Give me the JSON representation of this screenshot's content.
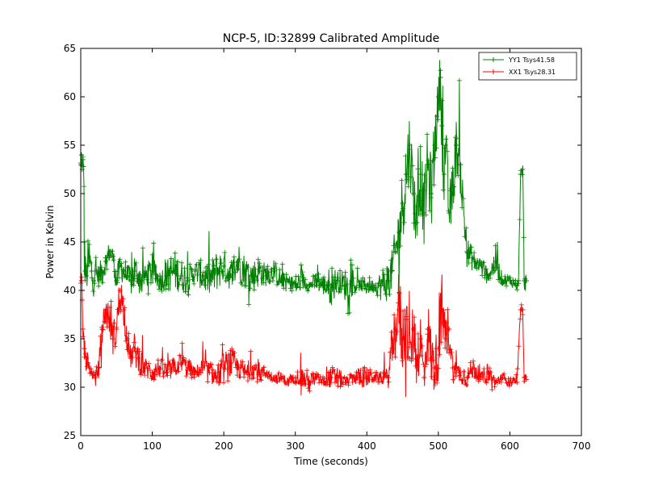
{
  "chart_data": {
    "type": "line",
    "title": "NCP-5, ID:32899 Calibrated Amplitude",
    "xlabel": "Time (seconds)",
    "ylabel": "Power in Kelvin",
    "xlim": [
      0,
      700
    ],
    "ylim": [
      25,
      65
    ],
    "xticks": [
      "0",
      "100",
      "200",
      "300",
      "400",
      "500",
      "600",
      "700"
    ],
    "yticks": [
      "25",
      "30",
      "35",
      "40",
      "45",
      "50",
      "55",
      "60",
      "65"
    ],
    "grid": false,
    "legend_position": "top-right",
    "marker": "+",
    "series": [
      {
        "name": "YY1 Tsys41.58",
        "color": "#008000",
        "x": [
          0,
          1,
          2,
          3,
          4,
          5,
          6,
          8,
          10,
          12,
          15,
          18,
          20,
          25,
          30,
          35,
          40,
          45,
          50,
          55,
          60,
          65,
          70,
          75,
          80,
          85,
          90,
          100,
          110,
          120,
          130,
          140,
          150,
          160,
          170,
          180,
          190,
          200,
          210,
          220,
          230,
          240,
          250,
          260,
          270,
          280,
          290,
          300,
          310,
          320,
          330,
          340,
          350,
          360,
          370,
          380,
          390,
          400,
          410,
          420,
          430,
          435,
          440,
          445,
          450,
          455,
          460,
          465,
          470,
          475,
          480,
          485,
          490,
          495,
          498,
          500,
          503,
          505,
          508,
          510,
          515,
          520,
          525,
          530,
          540,
          550,
          560,
          570,
          580,
          590,
          600,
          610,
          612,
          615,
          618,
          620,
          623
        ],
        "y": [
          53,
          54,
          52.5,
          53.5,
          52.8,
          45,
          42,
          41.5,
          42.5,
          43,
          42,
          41,
          42,
          41.5,
          42,
          43,
          44,
          43.5,
          41,
          42.5,
          42,
          41.5,
          41,
          42,
          41.5,
          41,
          41.5,
          42,
          41,
          41.5,
          42,
          41.5,
          41,
          42,
          41.5,
          41,
          42,
          42.5,
          41.5,
          43,
          42,
          41.5,
          42,
          41.5,
          42,
          41,
          41,
          40.5,
          41,
          40.5,
          41,
          40.5,
          40.5,
          41,
          40.5,
          40.5,
          40.5,
          40.5,
          40.5,
          40.5,
          41,
          42,
          44,
          46,
          49,
          52,
          55,
          50,
          47,
          52,
          48,
          53,
          50,
          55,
          58,
          60,
          62,
          57,
          52,
          55,
          48,
          50,
          55,
          53,
          44,
          43,
          42.5,
          41.5,
          43,
          41,
          41,
          40.5,
          41,
          52,
          52.5,
          41,
          41
        ],
        "yerr": [
          1,
          1,
          1,
          1,
          1,
          8,
          4,
          3,
          5,
          5,
          4,
          3,
          3,
          2,
          3,
          2,
          2,
          2,
          3,
          2,
          3,
          2,
          3,
          4,
          2,
          3,
          2,
          3,
          2,
          3,
          4,
          3,
          3,
          2,
          3,
          3,
          4,
          3,
          3,
          4,
          3,
          3,
          3,
          2,
          2,
          2,
          1,
          2,
          2,
          1,
          2,
          2,
          4,
          2,
          3,
          2,
          1,
          2,
          1,
          3,
          4,
          4,
          5,
          6,
          7,
          8,
          7,
          6,
          7,
          7,
          6,
          7,
          7,
          7,
          5,
          4,
          6,
          7,
          7,
          6,
          5,
          6,
          5,
          5,
          3,
          2,
          2,
          1,
          3,
          1,
          1,
          1,
          1,
          1,
          1,
          2,
          2
        ]
      },
      {
        "name": "XX1 Tsys28.31",
        "color": "#ff0000",
        "x": [
          0,
          1,
          2,
          3,
          5,
          8,
          10,
          12,
          15,
          20,
          25,
          30,
          35,
          40,
          45,
          50,
          55,
          60,
          65,
          70,
          75,
          80,
          90,
          100,
          110,
          120,
          130,
          140,
          150,
          160,
          170,
          180,
          190,
          200,
          210,
          220,
          230,
          240,
          250,
          260,
          270,
          280,
          290,
          300,
          310,
          320,
          330,
          340,
          350,
          360,
          370,
          380,
          390,
          400,
          410,
          420,
          430,
          435,
          440,
          445,
          450,
          455,
          460,
          465,
          470,
          475,
          480,
          485,
          490,
          495,
          500,
          505,
          510,
          515,
          520,
          525,
          530,
          540,
          550,
          560,
          570,
          580,
          590,
          600,
          610,
          615,
          618,
          620,
          623
        ],
        "y": [
          40,
          41,
          39,
          36,
          34,
          33,
          32.5,
          32,
          31.5,
          31,
          32,
          36,
          38,
          37,
          35,
          36,
          40,
          38,
          35,
          33,
          34,
          33,
          32,
          31.5,
          32,
          31.5,
          32,
          32.5,
          32,
          31.5,
          32,
          31.5,
          31,
          32,
          32.5,
          32,
          31.5,
          32,
          31.5,
          31.5,
          31,
          31,
          30.5,
          31,
          31,
          30.5,
          31,
          30.5,
          31,
          31,
          30.5,
          31,
          31,
          31,
          31,
          31,
          31,
          34,
          36,
          38,
          35,
          37,
          33,
          36,
          33,
          35,
          31,
          36,
          33,
          32,
          34,
          38,
          35,
          36,
          32,
          31.5,
          31.5,
          31,
          32,
          31,
          31.5,
          30.5,
          31,
          30.5,
          30.5,
          38,
          38,
          31,
          30.8
        ],
        "yerr": [
          2,
          2,
          3,
          3,
          2,
          2,
          2,
          1,
          1,
          1,
          2,
          3,
          3,
          3,
          3,
          4,
          4,
          3,
          3,
          2,
          3,
          3,
          2,
          2,
          2,
          2,
          2,
          2,
          2,
          1,
          2,
          2,
          2,
          3,
          3,
          2,
          2,
          2,
          2,
          1,
          1,
          1,
          1,
          1,
          2,
          2,
          1,
          1,
          2,
          2,
          1,
          1,
          2,
          2,
          1,
          1,
          2,
          4,
          6,
          8,
          7,
          6,
          5,
          6,
          6,
          5,
          5,
          6,
          6,
          5,
          6,
          7,
          5,
          5,
          3,
          2,
          2,
          2,
          2,
          1,
          2,
          1,
          1,
          1,
          1,
          1,
          1,
          1,
          1
        ]
      }
    ]
  }
}
